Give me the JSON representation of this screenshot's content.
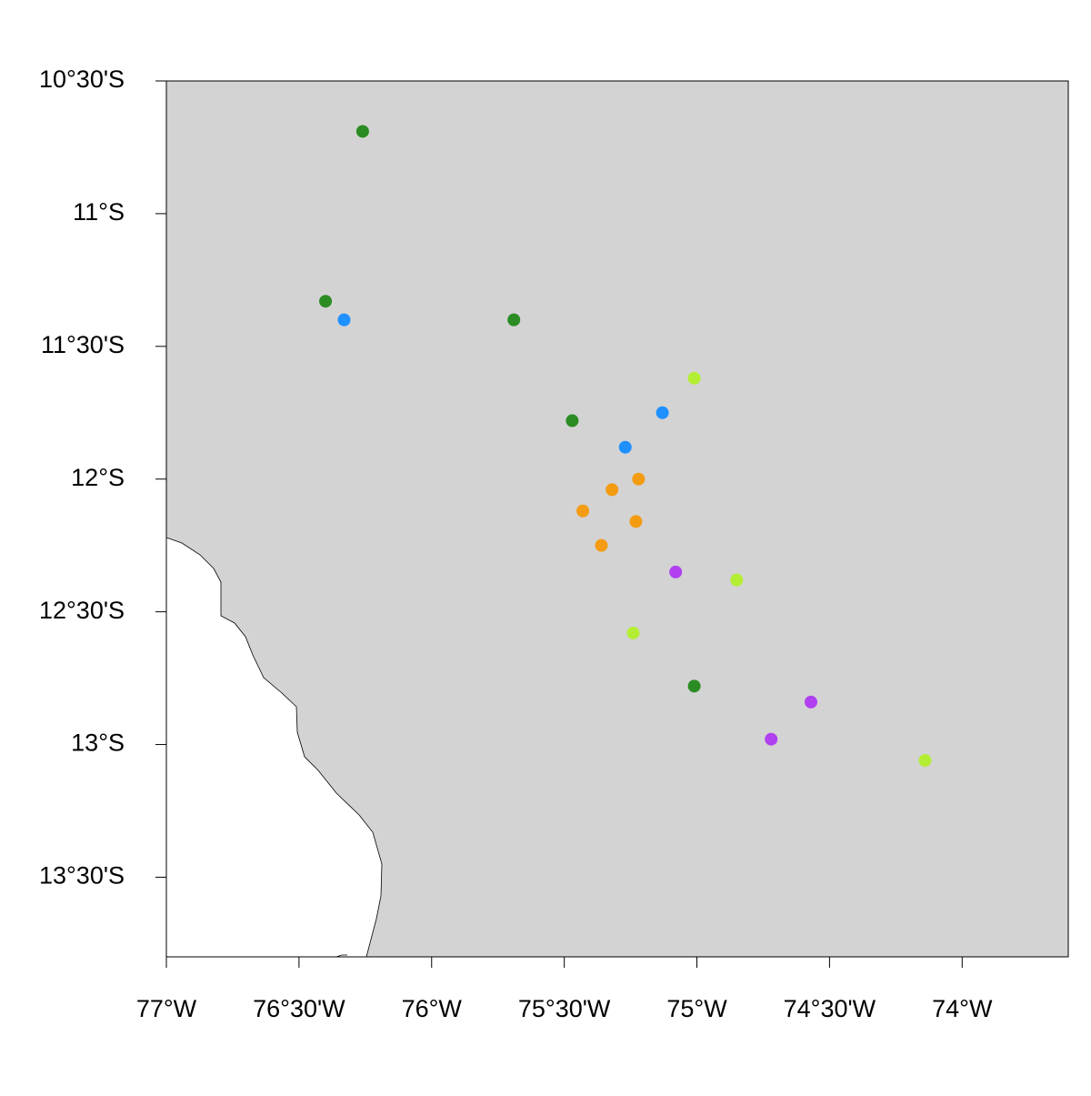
{
  "chart_data": {
    "type": "scatter",
    "xlim": [
      -77,
      -73.6
    ],
    "ylim": [
      -13.8,
      -10.5
    ],
    "xticks": [
      {
        "value": -77,
        "label": "77°W"
      },
      {
        "value": -76.5,
        "label": "76°30'W"
      },
      {
        "value": -76,
        "label": "76°W"
      },
      {
        "value": -75.5,
        "label": "75°30'W"
      },
      {
        "value": -75,
        "label": "75°W"
      },
      {
        "value": -74.5,
        "label": "74°30'W"
      },
      {
        "value": -74,
        "label": "74°W"
      }
    ],
    "yticks": [
      {
        "value": -10.5,
        "label": "10°30'S"
      },
      {
        "value": -11,
        "label": "11°S"
      },
      {
        "value": -11.5,
        "label": "11°30'S"
      },
      {
        "value": -12,
        "label": "12°S"
      },
      {
        "value": -12.5,
        "label": "12°30'S"
      },
      {
        "value": -13,
        "label": "13°S"
      },
      {
        "value": -13.5,
        "label": "13°30'S"
      }
    ],
    "series": [
      {
        "color": "#2a8c22",
        "x": [
          -76.26,
          -76.4,
          -75.69,
          -75.47,
          -75.01
        ],
        "values": [
          -10.69,
          -11.33,
          -11.4,
          -11.78,
          -12.78
        ]
      },
      {
        "color": "#1e90ff",
        "x": [
          -76.33,
          -75.13,
          -75.27
        ],
        "values": [
          -11.4,
          -11.75,
          -11.88
        ]
      },
      {
        "color": "#f39c12",
        "x": [
          -75.22,
          -75.32,
          -75.43,
          -75.23,
          -75.36
        ],
        "values": [
          -12.0,
          -12.04,
          -12.12,
          -12.16,
          -12.25
        ]
      },
      {
        "color": "#b040f0",
        "x": [
          -75.08,
          -74.57,
          -74.72
        ],
        "values": [
          -12.35,
          -12.84,
          -12.98
        ]
      },
      {
        "color": "#b4ee34",
        "x": [
          -75.01,
          -74.85,
          -75.24,
          -74.14
        ],
        "values": [
          -11.62,
          -12.38,
          -12.58,
          -13.06
        ]
      }
    ]
  }
}
